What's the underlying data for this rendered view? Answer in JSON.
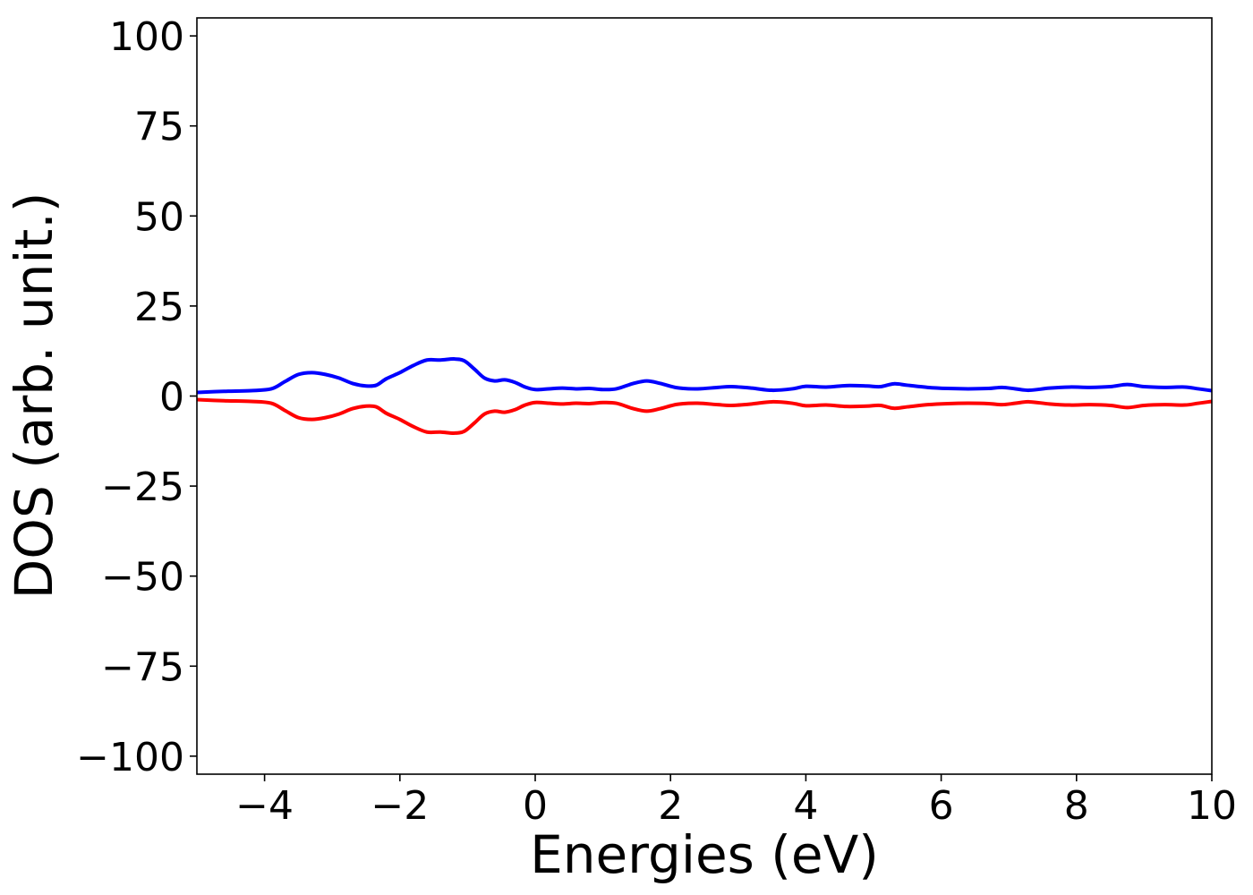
{
  "chart_data": {
    "type": "line",
    "title": "",
    "xlabel": "Energies (eV)",
    "ylabel": "DOS (arb. unit.)",
    "xlim": [
      -5,
      10
    ],
    "ylim": [
      -105,
      105
    ],
    "xticks": [
      -4,
      -2,
      0,
      2,
      4,
      6,
      8,
      10
    ],
    "xtick_labels": [
      "−4",
      "−2",
      "0",
      "2",
      "4",
      "6",
      "8",
      "10"
    ],
    "yticks": [
      100,
      75,
      50,
      25,
      0,
      -25,
      -50,
      -75,
      -100
    ],
    "ytick_labels": [
      "100",
      "75",
      "50",
      "25",
      "0",
      "−25",
      "−50",
      "−75",
      "−100"
    ],
    "grid": false,
    "legend": false,
    "series": [
      {
        "color": "#0000ff",
        "x": [
          -5.0,
          -4.6,
          -4.2,
          -3.9,
          -3.7,
          -3.5,
          -3.3,
          -3.1,
          -2.9,
          -2.7,
          -2.5,
          -2.35,
          -2.2,
          -2.0,
          -1.8,
          -1.6,
          -1.4,
          -1.2,
          -1.05,
          -0.9,
          -0.75,
          -0.6,
          -0.45,
          -0.3,
          -0.15,
          0.0,
          0.2,
          0.4,
          0.6,
          0.8,
          1.0,
          1.2,
          1.45,
          1.65,
          1.85,
          2.1,
          2.4,
          2.7,
          2.9,
          3.2,
          3.5,
          3.8,
          4.0,
          4.3,
          4.6,
          4.9,
          5.1,
          5.3,
          5.5,
          5.8,
          6.1,
          6.4,
          6.7,
          6.9,
          7.1,
          7.3,
          7.6,
          7.9,
          8.2,
          8.5,
          8.75,
          9.0,
          9.3,
          9.6,
          9.8,
          10.0
        ],
        "y": [
          1.0,
          1.3,
          1.5,
          2.0,
          4.0,
          6.0,
          6.5,
          6.0,
          5.0,
          3.5,
          2.8,
          3.0,
          4.8,
          6.5,
          8.5,
          10.0,
          10.0,
          10.3,
          9.8,
          7.5,
          5.0,
          4.2,
          4.5,
          3.8,
          2.5,
          1.8,
          2.0,
          2.2,
          2.0,
          2.1,
          1.8,
          2.0,
          3.5,
          4.2,
          3.5,
          2.3,
          2.0,
          2.4,
          2.6,
          2.2,
          1.6,
          2.0,
          2.7,
          2.5,
          2.9,
          2.8,
          2.6,
          3.4,
          3.0,
          2.4,
          2.1,
          2.0,
          2.1,
          2.4,
          2.0,
          1.6,
          2.2,
          2.5,
          2.4,
          2.6,
          3.2,
          2.6,
          2.4,
          2.5,
          2.0,
          1.5
        ]
      },
      {
        "color": "#ff0000",
        "x": [
          -5.0,
          -4.6,
          -4.2,
          -3.9,
          -3.7,
          -3.5,
          -3.3,
          -3.1,
          -2.9,
          -2.7,
          -2.5,
          -2.35,
          -2.2,
          -2.0,
          -1.8,
          -1.6,
          -1.4,
          -1.2,
          -1.05,
          -0.9,
          -0.75,
          -0.6,
          -0.45,
          -0.3,
          -0.15,
          0.0,
          0.2,
          0.4,
          0.6,
          0.8,
          1.0,
          1.2,
          1.45,
          1.65,
          1.85,
          2.1,
          2.4,
          2.7,
          2.9,
          3.2,
          3.5,
          3.8,
          4.0,
          4.3,
          4.6,
          4.9,
          5.1,
          5.3,
          5.5,
          5.8,
          6.1,
          6.4,
          6.7,
          6.9,
          7.1,
          7.3,
          7.6,
          7.9,
          8.2,
          8.5,
          8.75,
          9.0,
          9.3,
          9.6,
          9.8,
          10.0
        ],
        "y": [
          -1.0,
          -1.3,
          -1.5,
          -2.0,
          -4.0,
          -6.0,
          -6.5,
          -6.0,
          -5.0,
          -3.5,
          -2.8,
          -3.0,
          -4.8,
          -6.5,
          -8.5,
          -10.0,
          -10.0,
          -10.3,
          -9.8,
          -7.5,
          -5.0,
          -4.2,
          -4.5,
          -3.8,
          -2.5,
          -1.8,
          -2.0,
          -2.2,
          -2.0,
          -2.1,
          -1.8,
          -2.0,
          -3.5,
          -4.2,
          -3.5,
          -2.3,
          -2.0,
          -2.4,
          -2.6,
          -2.2,
          -1.6,
          -2.0,
          -2.7,
          -2.5,
          -2.9,
          -2.8,
          -2.6,
          -3.4,
          -3.0,
          -2.4,
          -2.1,
          -2.0,
          -2.1,
          -2.4,
          -2.0,
          -1.6,
          -2.2,
          -2.5,
          -2.4,
          -2.6,
          -3.2,
          -2.6,
          -2.4,
          -2.5,
          -2.0,
          -1.5
        ]
      }
    ]
  }
}
